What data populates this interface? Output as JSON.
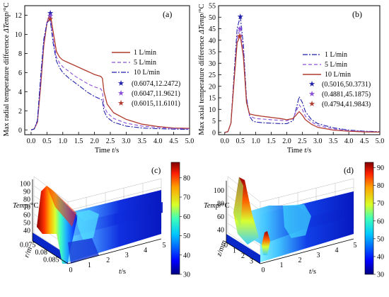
{
  "panels": {
    "a": {
      "label": "(a)",
      "xlabel_text": "Time ",
      "xlabel_var": "t",
      "xlabel_unit": "/s",
      "ylabel_text": "Max radial temperature difference ",
      "ylabel_var": "ΔTemp",
      "ylabel_unit": "/°C",
      "legend": [
        "1 L/min",
        "5 L/min",
        "10 L/min",
        "(0.6074,12.2472)",
        "(0.6047,11.9621)",
        "(0.6015,11.6101)"
      ]
    },
    "b": {
      "label": "(b)",
      "xlabel_text": "Time ",
      "xlabel_var": "t",
      "xlabel_unit": "/s",
      "ylabel_text": "Max axial temperature difference ",
      "ylabel_var": "ΔTemp",
      "ylabel_unit": "/°C",
      "legend": [
        "1 L/min",
        "5 L/min",
        "10 L/min",
        "(0.5016,50.3731)",
        "(0.4881,45.1875)",
        "(0.4794,41.9843)"
      ]
    },
    "c": {
      "label": "(c)",
      "zlabel_var": "Temp",
      "zlabel_unit": "/°C",
      "xlabel_var": "t",
      "xlabel_unit": "/s",
      "ylabel_var": "r",
      "ylabel_unit": "/m"
    },
    "d": {
      "label": "(d)",
      "zlabel_var": "Temp",
      "zlabel_unit": "/°C",
      "xlabel_var": "t",
      "xlabel_unit": "/s",
      "ylabel_var": "z",
      "ylabel_unit": "/mm"
    }
  },
  "chart_data": [
    {
      "type": "line",
      "title": "(a)",
      "xlabel": "Time t/s",
      "ylabel": "Max radial temperature difference ΔTemp/°C",
      "xlim": [
        -0.2,
        5.0
      ],
      "ylim": [
        -0.5,
        13.0
      ],
      "xticks": [
        "0.0",
        "0.5",
        "1.0",
        "1.5",
        "2.0",
        "2.5",
        "3.0",
        "3.5",
        "4.0",
        "4.5",
        "5.0"
      ],
      "yticks": [
        "0",
        "2",
        "4",
        "6",
        "8",
        "10",
        "12"
      ],
      "legend_position": "top-right",
      "x": [
        0,
        0.1,
        0.2,
        0.3,
        0.4,
        0.5,
        0.6,
        0.7,
        0.8,
        0.9,
        1.0,
        1.2,
        1.4,
        1.6,
        1.8,
        2.0,
        2.2,
        2.25,
        2.3,
        2.4,
        2.6,
        3.0,
        3.5,
        4.0,
        4.5,
        5.0
      ],
      "series": [
        {
          "name": "1 L/min",
          "color": "#b03a2e",
          "dash": "solid",
          "values": [
            0,
            0.1,
            0.8,
            4.5,
            8.8,
            11.2,
            12.25,
            10.2,
            8.2,
            7.6,
            7.3,
            7.0,
            6.7,
            6.4,
            6.1,
            5.8,
            5.6,
            5.4,
            4.0,
            2.7,
            1.8,
            1.1,
            0.6,
            0.35,
            0.2,
            0.15
          ]
        },
        {
          "name": "5 L/min",
          "color": "#8a4fd8",
          "dash": "dashed",
          "values": [
            0,
            0.1,
            0.9,
            5.0,
            9.2,
            11.3,
            11.96,
            9.5,
            7.6,
            7.0,
            6.6,
            6.1,
            5.6,
            5.2,
            4.8,
            4.5,
            4.3,
            4.0,
            2.5,
            1.8,
            1.2,
            0.7,
            0.4,
            0.25,
            0.15,
            0.1
          ]
        },
        {
          "name": "10 L/min",
          "color": "#1f1fa8",
          "dash": "dashdot",
          "values": [
            0,
            0.1,
            1.0,
            5.5,
            9.5,
            11.2,
            11.61,
            9.0,
            7.2,
            6.5,
            6.0,
            5.4,
            4.9,
            4.4,
            3.9,
            3.5,
            3.2,
            3.1,
            2.0,
            1.3,
            0.8,
            0.4,
            0.2,
            0.12,
            0.08,
            0.05
          ]
        }
      ],
      "markers": [
        {
          "name": "(0.6074,12.2472)",
          "x": 0.6074,
          "y": 12.2472,
          "color": "#1f1fa8"
        },
        {
          "name": "(0.6047,11.9621)",
          "x": 0.6047,
          "y": 11.9621,
          "color": "#8a4fd8"
        },
        {
          "name": "(0.6015,11.6101)",
          "x": 0.6015,
          "y": 11.6101,
          "color": "#b03a2e"
        }
      ]
    },
    {
      "type": "line",
      "title": "(b)",
      "xlabel": "Time t/s",
      "ylabel": "Max axial temperature difference ΔTemp/°C",
      "xlim": [
        -0.2,
        5.0
      ],
      "ylim": [
        -1,
        55
      ],
      "xticks": [
        "0.0",
        "0.5",
        "1.0",
        "1.5",
        "2.0",
        "2.5",
        "3.0",
        "3.5",
        "4.0",
        "4.5",
        "5.0"
      ],
      "yticks": [
        "0",
        "5",
        "10",
        "15",
        "20",
        "25",
        "30",
        "35",
        "40",
        "45",
        "50",
        "55"
      ],
      "legend_position": "top-right",
      "x": [
        0,
        0.1,
        0.2,
        0.3,
        0.4,
        0.5,
        0.6,
        0.7,
        0.8,
        0.9,
        1.0,
        1.2,
        1.5,
        1.8,
        2.0,
        2.2,
        2.3,
        2.4,
        2.5,
        2.6,
        2.8,
        3.0,
        3.5,
        4.0,
        4.5,
        5.0
      ],
      "series": [
        {
          "name": "1 L/min",
          "color": "#1f1fa8",
          "dash": "dashdot",
          "values": [
            0,
            0.3,
            4,
            25,
            45,
            50.4,
            38,
            15,
            7,
            5,
            4.5,
            4.2,
            4.0,
            3.8,
            3.8,
            5,
            10,
            15.5,
            13,
            9,
            5.5,
            3.8,
            2.0,
            1.0,
            0.5,
            0.3
          ]
        },
        {
          "name": "5 L/min",
          "color": "#8a4fd8",
          "dash": "dashed",
          "values": [
            0,
            0.3,
            4,
            23,
            41,
            45.2,
            35,
            14,
            7.5,
            6.5,
            6,
            5.8,
            5.5,
            5.2,
            5.0,
            6,
            9,
            12,
            10,
            7,
            4.5,
            3.0,
            1.5,
            0.8,
            0.4,
            0.2
          ]
        },
        {
          "name": "10 L/min",
          "color": "#b03a2e",
          "dash": "solid",
          "values": [
            0,
            0.3,
            4,
            22,
            39,
            42.0,
            33,
            13,
            8,
            7.7,
            7.4,
            7.0,
            6.5,
            6.0,
            5.5,
            6,
            7.5,
            9,
            7.5,
            5.5,
            3.5,
            2.2,
            1.0,
            0.5,
            0.2,
            0.1
          ]
        }
      ],
      "markers": [
        {
          "name": "(0.5016,50.3731)",
          "x": 0.5016,
          "y": 50.3731,
          "color": "#1f1fa8"
        },
        {
          "name": "(0.4881,45.1875)",
          "x": 0.4881,
          "y": 45.1875,
          "color": "#8a4fd8"
        },
        {
          "name": "(0.4794,41.9843)",
          "x": 0.4794,
          "y": 41.9843,
          "color": "#b03a2e"
        }
      ]
    },
    {
      "type": "heatmap",
      "title": "(c)",
      "xlabel": "t/s",
      "ylabel": "r/m",
      "zlabel": "Temp/°C",
      "x_ticks": [
        "0",
        "1",
        "2",
        "3",
        "4",
        "5"
      ],
      "y_ticks": [
        "0.075",
        "0.08",
        "0.085"
      ],
      "z_ticks": [
        "40",
        "50",
        "60",
        "70",
        "80",
        "90",
        "100"
      ],
      "colorbar_ticks": [
        "30",
        "40",
        "50",
        "60",
        "70",
        "80"
      ],
      "colorbar_range": [
        30,
        88
      ]
    },
    {
      "type": "heatmap",
      "title": "(d)",
      "xlabel": "t/s",
      "ylabel": "z/mm",
      "zlabel": "Temp/°C",
      "x_ticks": [
        "0",
        "1",
        "2",
        "3",
        "4",
        "5"
      ],
      "y_ticks": [
        "0",
        "1",
        "2",
        "3"
      ],
      "z_ticks": [
        "40",
        "60",
        "80",
        "100"
      ],
      "colorbar_ticks": [
        "30",
        "40",
        "50",
        "60",
        "70",
        "80",
        "90"
      ],
      "colorbar_range": [
        30,
        93
      ]
    }
  ]
}
